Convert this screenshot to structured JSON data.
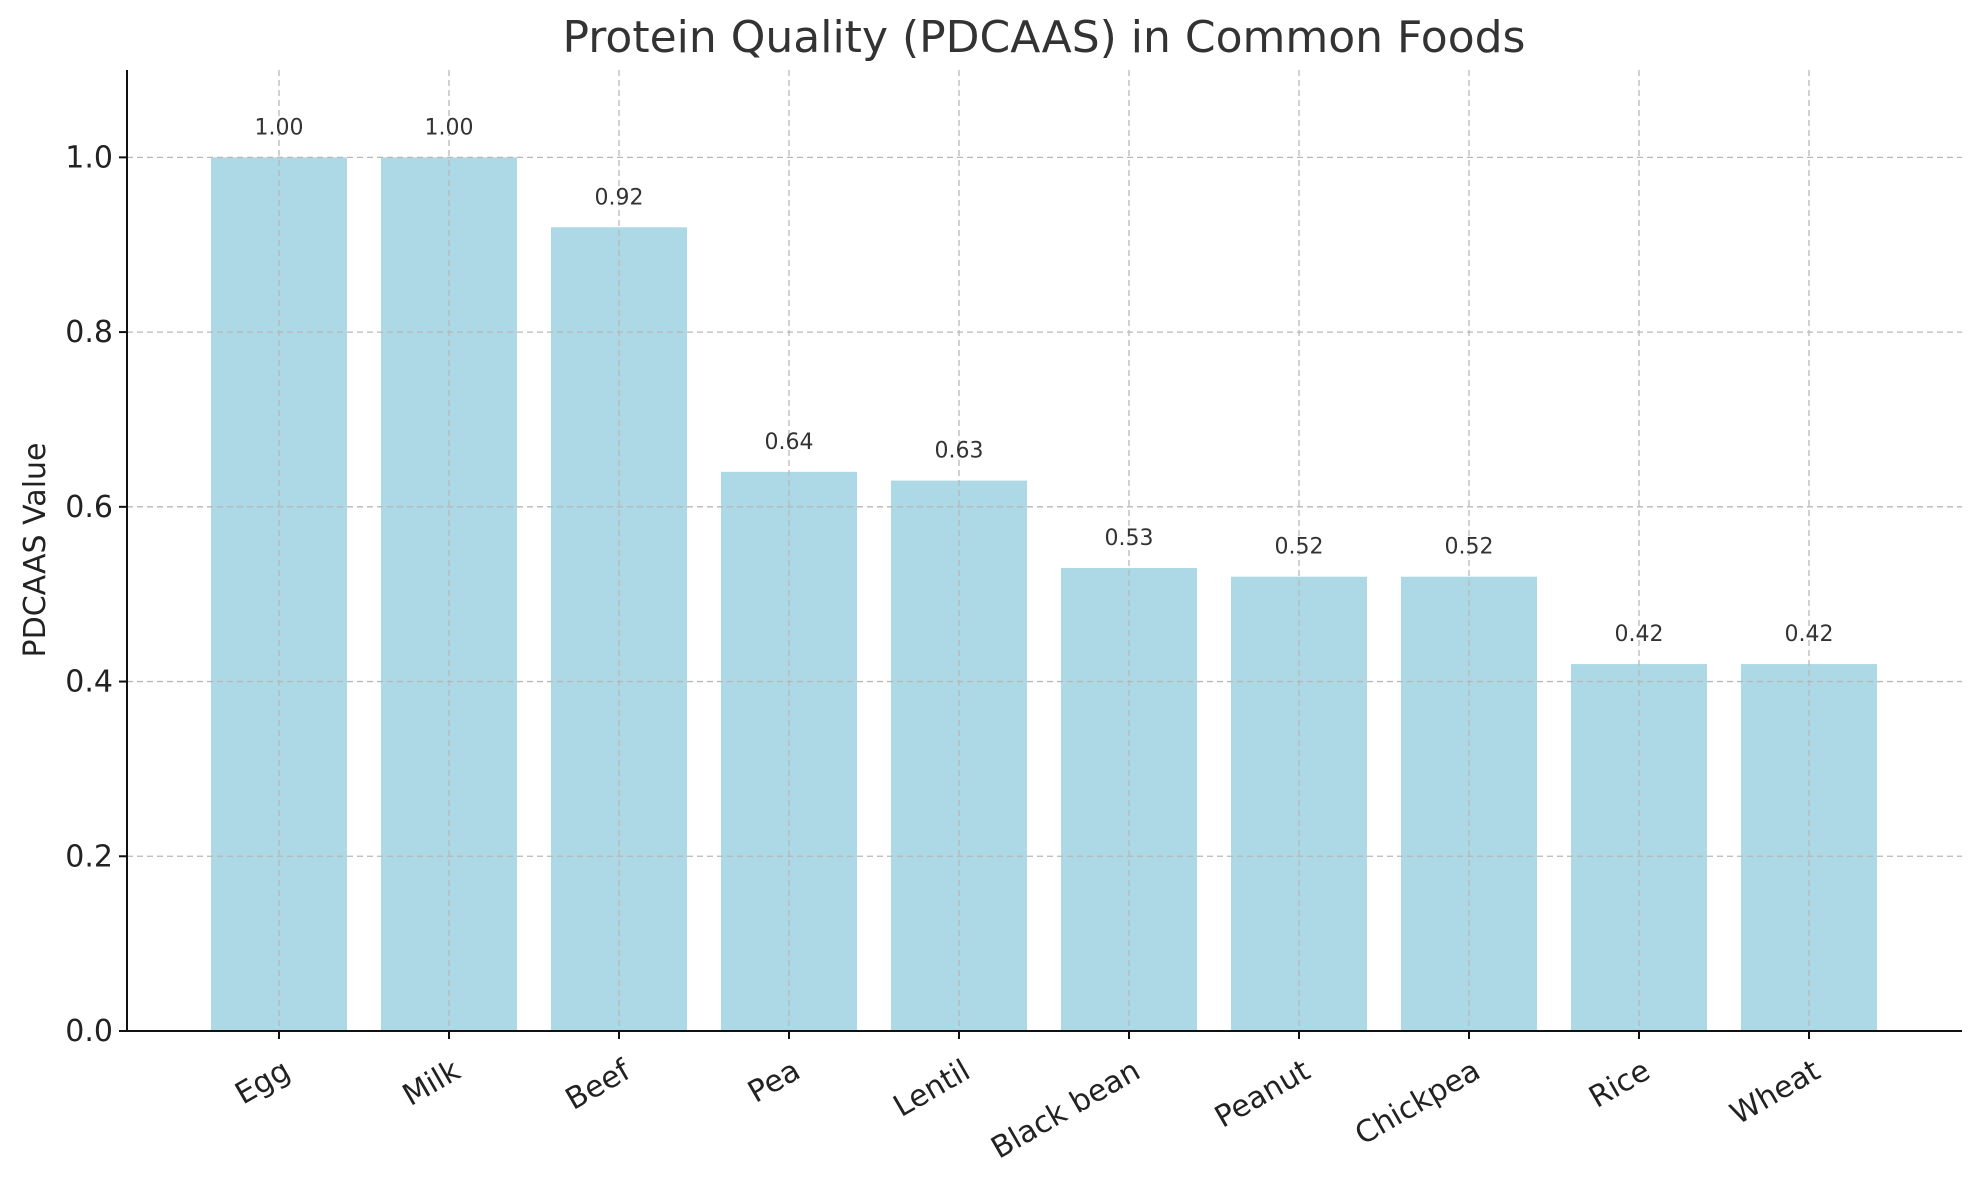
{
  "chart_data": {
    "type": "bar",
    "title": "Protein Quality (PDCAAS) in Common Foods",
    "xlabel": "",
    "ylabel": "PDCAAS Value",
    "categories": [
      "Egg",
      "Milk",
      "Beef",
      "Pea",
      "Lentil",
      "Black bean",
      "Peanut",
      "Chickpea",
      "Rice",
      "Wheat"
    ],
    "values": [
      1.0,
      1.0,
      0.92,
      0.64,
      0.63,
      0.53,
      0.52,
      0.52,
      0.42,
      0.42
    ],
    "data_labels": [
      "1.00",
      "1.00",
      "0.92",
      "0.64",
      "0.63",
      "0.53",
      "0.52",
      "0.52",
      "0.42",
      "0.42"
    ],
    "ylim": [
      0,
      1.1
    ],
    "yticks": [
      0.0,
      0.2,
      0.4,
      0.6,
      0.8,
      1.0
    ],
    "ytick_labels": [
      "0.0",
      "0.2",
      "0.4",
      "0.6",
      "0.8",
      "1.0"
    ],
    "grid": true,
    "bar_color": "#add8e6"
  }
}
